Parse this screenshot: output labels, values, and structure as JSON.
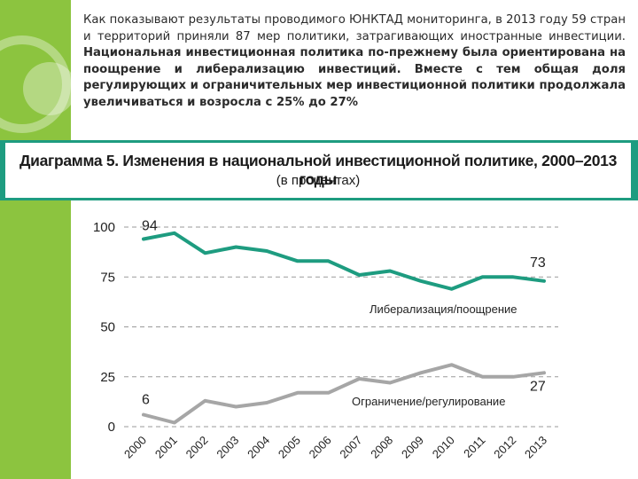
{
  "intro": {
    "text": "Как показывают результаты проводимого ЮНКТАД мониторинга, в 2013 году 59 стран и территорий приняли 87 мер политики, затрагивающих иностранные инвестиции.",
    "text_strong": " Национальная инвестиционная политика по-прежнему была ориентирована на поощрение и либерализацию инвестиций. Вместе с тем общая доля регулирующих и ограничительных мер инвестиционной политики продолжала увеличиваться и возросла с 25% до 27%"
  },
  "banner": {
    "title": "Диаграмма 5. Изменения в национальной инвестиционной политике, 2000–2013 годы",
    "subtitle": "(в процентах)"
  },
  "colors": {
    "band": "#8cc43f",
    "banner": "#1e9c80",
    "liberalization": "#1e9c80",
    "restriction": "#a6a6a6"
  },
  "chart_data": {
    "type": "line",
    "title": "Диаграмма 5. Изменения в национальной инвестиционной политике, 2000–2013 годы",
    "subtitle": "(в процентах)",
    "x": [
      "2000",
      "2001",
      "2002",
      "2003",
      "2004",
      "2005",
      "2006",
      "2007",
      "2008",
      "2009",
      "2010",
      "2011",
      "2012",
      "2013"
    ],
    "ylim": [
      0,
      100
    ],
    "yticks": [
      0,
      25,
      50,
      75,
      100
    ],
    "grid": "dashed horizontal",
    "series": [
      {
        "name": "Либерализация/поощрение",
        "color": "#1e9c80",
        "values": [
          94,
          97,
          87,
          90,
          88,
          83,
          83,
          76,
          78,
          73,
          69,
          75,
          75,
          73
        ],
        "start_label": "94",
        "end_label": "73"
      },
      {
        "name": "Ограничение/регулирование",
        "color": "#a6a6a6",
        "values": [
          6,
          2,
          13,
          10,
          12,
          17,
          17,
          24,
          22,
          27,
          31,
          25,
          25,
          27
        ],
        "start_label": "6",
        "end_label": "27"
      }
    ]
  }
}
